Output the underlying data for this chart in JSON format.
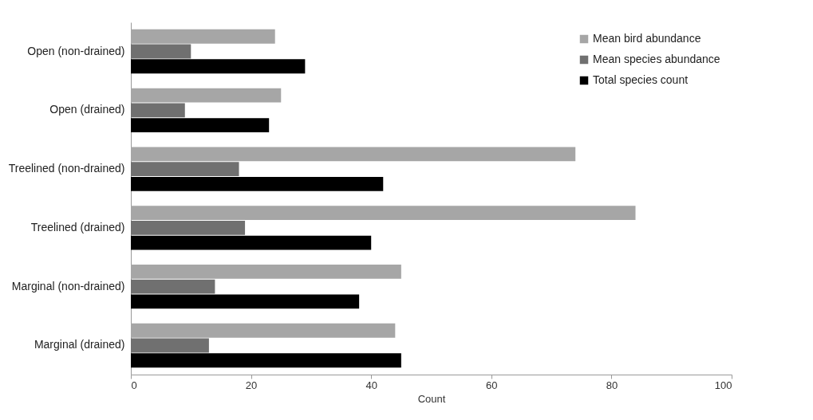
{
  "chart_data": {
    "type": "bar",
    "orientation": "horizontal",
    "xlabel": "Count",
    "categories": [
      "Open (non-drained)",
      "Open (drained)",
      "Treelined (non-drained)",
      "Treelined (drained)",
      "Marginal (non-drained)",
      "Marginal (drained)"
    ],
    "series": [
      {
        "name": "Mean bird abundance",
        "color": "#a6a6a6",
        "values": [
          24,
          25,
          74,
          84,
          45,
          44
        ]
      },
      {
        "name": "Mean species abundance",
        "color": "#707070",
        "values": [
          10,
          9,
          18,
          19,
          14,
          13
        ]
      },
      {
        "name": "Total species count",
        "color": "#000000",
        "values": [
          29,
          23,
          42,
          40,
          38,
          45
        ]
      }
    ],
    "xlim": [
      0,
      100
    ],
    "xticks": [
      0,
      20,
      40,
      60,
      80,
      100
    ],
    "grid": false,
    "legend": "top right"
  }
}
